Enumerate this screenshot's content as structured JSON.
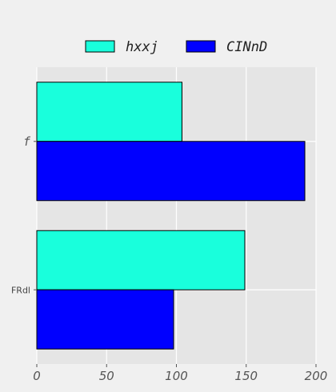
{
  "chart_data": {
    "type": "bar",
    "orientation": "horizontal",
    "categories": [
      "f",
      "FRdl"
    ],
    "series": [
      {
        "name": "hxxj",
        "color": "#19ffdc",
        "values": [
          104,
          149
        ]
      },
      {
        "name": "CINnD",
        "color": "#0000ff",
        "values": [
          192,
          98
        ]
      }
    ],
    "xlim": [
      0,
      200
    ],
    "xticks": [
      "0",
      "50",
      "100",
      "150",
      "200"
    ],
    "xtick_values": [
      0,
      50,
      100,
      150,
      200
    ],
    "grid": true,
    "legend_position": "top-center",
    "colors": {
      "background": "#f0f0f0",
      "plot_background": "#e5e5e5",
      "grid": "#ffffff",
      "bar_edge": "#000000"
    }
  }
}
